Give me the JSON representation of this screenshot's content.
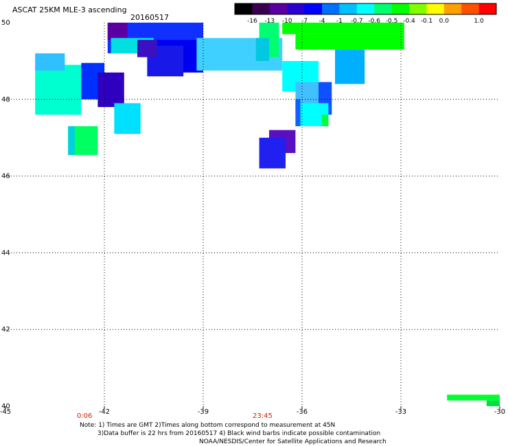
{
  "header": {
    "title": "ASCAT 25KM MLE-3 ascending",
    "date": "20160517"
  },
  "chart_data": {
    "type": "heatmap",
    "title": "ASCAT 25KM MLE-3 ascending",
    "subtitle": "20160517",
    "xlim": [
      -45,
      -30
    ],
    "ylim": [
      40,
      50
    ],
    "x_ticks": [
      -45,
      -42,
      -39,
      -36,
      -33,
      -30
    ],
    "x_tick_labels": [
      "-45",
      "-42",
      "-39",
      "-36",
      "-33",
      "-30"
    ],
    "y_ticks": [
      40,
      42,
      44,
      46,
      48,
      50
    ],
    "y_tick_labels": [
      "40",
      "42",
      "44",
      "46",
      "48",
      "50"
    ],
    "grid": true,
    "colorbar": {
      "labels": [
        "-16",
        "-13",
        "-10",
        "-7",
        "-4",
        "-1",
        "-0.7",
        "-0.6",
        "-0.5",
        "-0.4",
        "-0.1",
        "0.0",
        "1.0"
      ],
      "colors": [
        "#000000",
        "#3a0050",
        "#5a00a0",
        "#2a00d0",
        "#0000ff",
        "#0070ff",
        "#00c0ff",
        "#00ffff",
        "#00ff70",
        "#00ff00",
        "#80ff00",
        "#ffff00",
        "#ffa000",
        "#ff5000",
        "#ff0000"
      ]
    },
    "time_labels": [
      {
        "text": "0:06",
        "lon": -42.6
      },
      {
        "text": "23:45",
        "lon": -37.2
      }
    ],
    "cells": [
      {
        "lon": [
          -41.9,
          -39.0
        ],
        "lat": [
          49.2,
          50.0
        ],
        "color": "#1030ff"
      },
      {
        "lon": [
          -41.9,
          -41.3
        ],
        "lat": [
          49.55,
          50.0
        ],
        "color": "#5a00a0"
      },
      {
        "lon": [
          -40.4,
          -39.0
        ],
        "lat": [
          48.7,
          49.55
        ],
        "color": "#0000f0"
      },
      {
        "lon": [
          -40.7,
          -39.6
        ],
        "lat": [
          48.6,
          49.4
        ],
        "color": "#1818e8"
      },
      {
        "lon": [
          -41.8,
          -40.5
        ],
        "lat": [
          49.2,
          49.6
        ],
        "color": "#00e0e0"
      },
      {
        "lon": [
          -41.0,
          -40.4
        ],
        "lat": [
          49.1,
          49.55
        ],
        "color": "#3a10c0"
      },
      {
        "lon": [
          -39.2,
          -36.6
        ],
        "lat": [
          48.75,
          49.6
        ],
        "color": "#40d0ff"
      },
      {
        "lon": [
          -37.3,
          -36.7
        ],
        "lat": [
          49.1,
          50.0
        ],
        "color": "#00ff70"
      },
      {
        "lon": [
          -37.4,
          -37.0
        ],
        "lat": [
          49.0,
          49.6
        ],
        "color": "#00c8e0"
      },
      {
        "lon": [
          -36.6,
          -32.9
        ],
        "lat": [
          49.7,
          50.0
        ],
        "color": "#00ff00"
      },
      {
        "lon": [
          -36.2,
          -32.9
        ],
        "lat": [
          49.3,
          49.7
        ],
        "color": "#00ff00"
      },
      {
        "lon": [
          -35.0,
          -34.1
        ],
        "lat": [
          48.4,
          49.3
        ],
        "color": "#00b0ff"
      },
      {
        "lon": [
          -36.6,
          -35.5
        ],
        "lat": [
          48.2,
          49.0
        ],
        "color": "#00ffff"
      },
      {
        "lon": [
          -36.2,
          -35.1
        ],
        "lat": [
          47.6,
          48.45
        ],
        "color": "#40c0ff"
      },
      {
        "lon": [
          -35.5,
          -35.1
        ],
        "lat": [
          47.6,
          48.45
        ],
        "color": "#1050ff"
      },
      {
        "lon": [
          -36.2,
          -35.2
        ],
        "lat": [
          47.3,
          47.9
        ],
        "color": "#00ffff"
      },
      {
        "lon": [
          -35.4,
          -35.2
        ],
        "lat": [
          47.3,
          47.6
        ],
        "color": "#00ff40"
      },
      {
        "lon": [
          -36.2,
          -36.05
        ],
        "lat": [
          47.3,
          48.0
        ],
        "color": "#1060ff"
      },
      {
        "lon": [
          -37.0,
          -36.2
        ],
        "lat": [
          46.6,
          47.2
        ],
        "color": "#5a10c0"
      },
      {
        "lon": [
          -37.3,
          -36.5
        ],
        "lat": [
          46.2,
          47.0
        ],
        "color": "#2020f0"
      },
      {
        "lon": [
          -44.1,
          -42.7
        ],
        "lat": [
          47.6,
          48.9
        ],
        "color": "#00ffd0"
      },
      {
        "lon": [
          -44.1,
          -43.2
        ],
        "lat": [
          48.75,
          49.2
        ],
        "color": "#30c0ff"
      },
      {
        "lon": [
          -42.7,
          -42.0
        ],
        "lat": [
          48.0,
          48.95
        ],
        "color": "#0030ff"
      },
      {
        "lon": [
          -42.2,
          -41.4
        ],
        "lat": [
          47.8,
          48.7
        ],
        "color": "#3000c0"
      },
      {
        "lon": [
          -41.7,
          -40.9
        ],
        "lat": [
          47.1,
          47.9
        ],
        "color": "#00e0ff"
      },
      {
        "lon": [
          -43.1,
          -42.2
        ],
        "lat": [
          46.55,
          47.3
        ],
        "color": "#00ff60"
      },
      {
        "lon": [
          -43.1,
          -42.9
        ],
        "lat": [
          46.55,
          47.3
        ],
        "color": "#00d0e0"
      },
      {
        "lon": [
          -31.6,
          -30.0
        ],
        "lat": [
          40.15,
          40.3
        ],
        "color": "#00ff30"
      },
      {
        "lon": [
          -30.4,
          -30.0
        ],
        "lat": [
          40.0,
          40.15
        ],
        "color": "#00e040"
      }
    ]
  },
  "footer": {
    "note_line1": "Note: 1) Times are GMT 2)Times along bottom correspond to measurement at 45N",
    "note_line2": "3)Data buffer is 22 hrs from 20160517 4) Black wind barbs indicate possible contamination",
    "credit": "NOAA/NESDIS/Center for Satellite Applications and Research"
  }
}
